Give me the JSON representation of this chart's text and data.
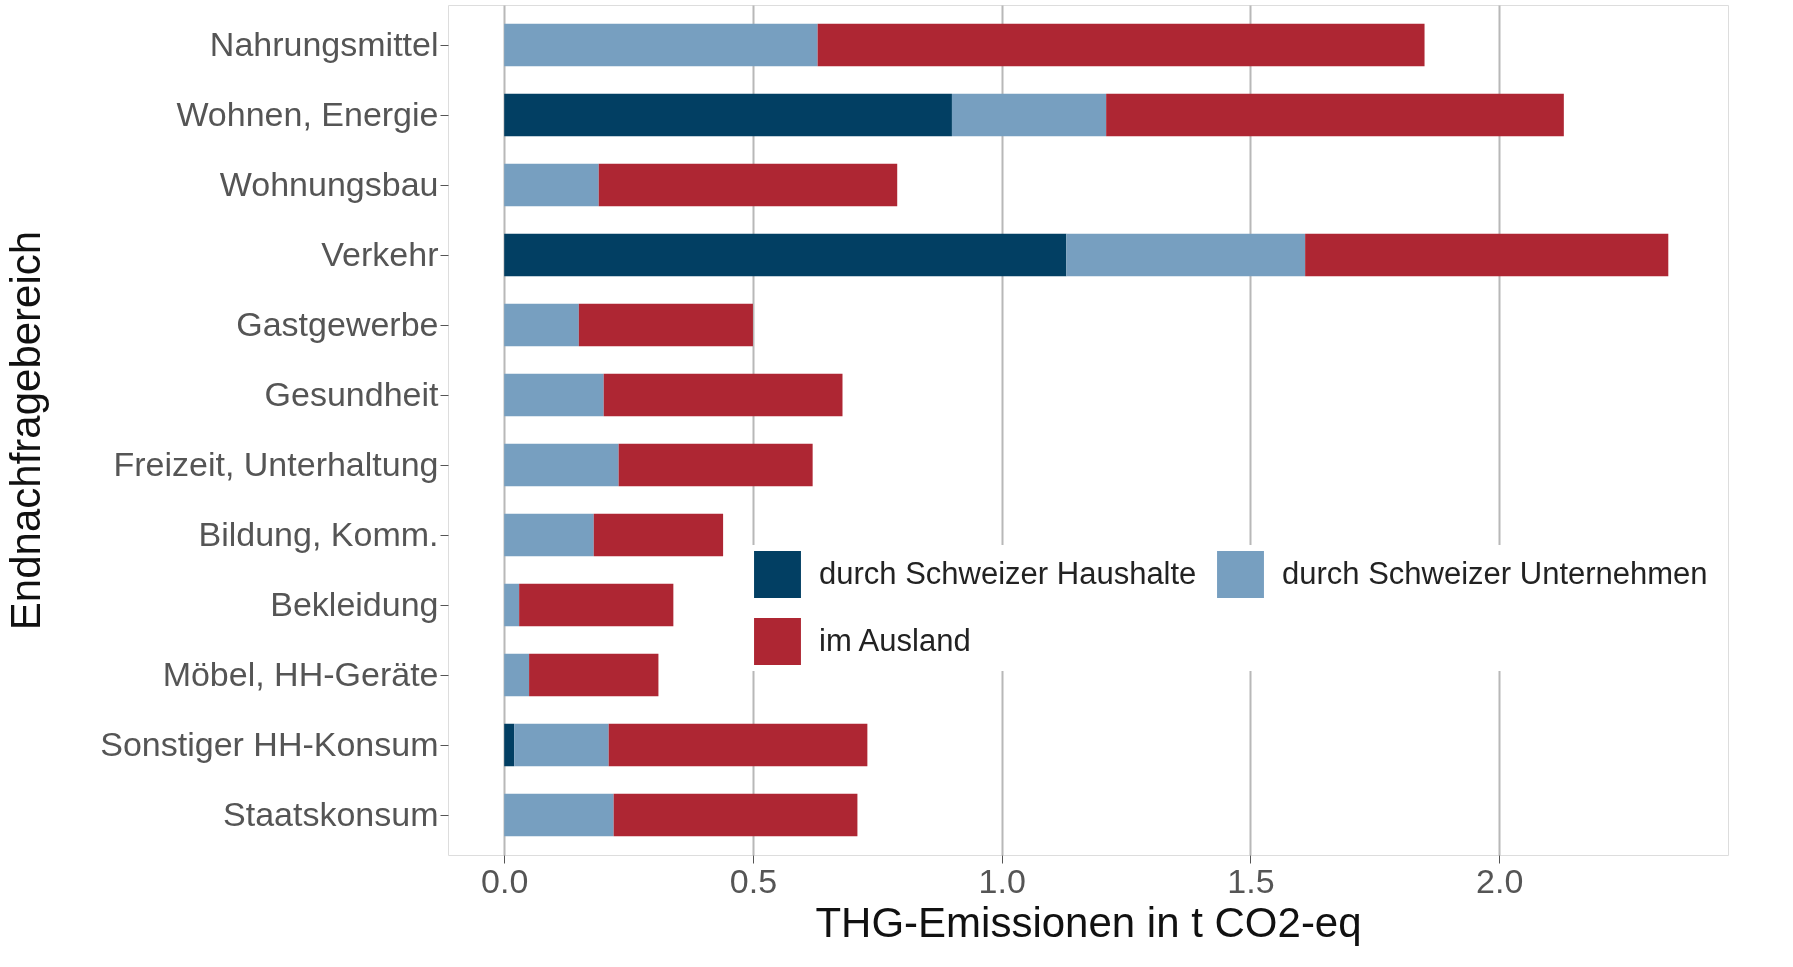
{
  "chart_data": {
    "type": "bar",
    "orientation": "horizontal",
    "stacked": true,
    "xlabel": "THG-Emissionen in t CO2-eq",
    "ylabel": "Endnachfragebereich",
    "categories": [
      "Nahrungsmittel",
      "Wohnen, Energie",
      "Wohnungsbau",
      "Verkehr",
      "Gastgewerbe",
      "Gesundheit",
      "Freizeit, Unterhaltung",
      "Bildung, Komm.",
      "Bekleidung",
      "Möbel, HH-Geräte",
      "Sonstiger HH-Konsum",
      "Staatskonsum"
    ],
    "series": [
      {
        "name": "durch Schweizer Haushalte",
        "color": "#023f63",
        "values": [
          0,
          0.9,
          0,
          1.13,
          0,
          0,
          0,
          0,
          0,
          0,
          0.02,
          0
        ]
      },
      {
        "name": "durch Schweizer Unternehmen",
        "color": "#779fc0",
        "values": [
          0.63,
          0.31,
          0.19,
          0.48,
          0.15,
          0.2,
          0.23,
          0.18,
          0.03,
          0.05,
          0.19,
          0.22
        ]
      },
      {
        "name": "im Ausland",
        "color": "#ae2633",
        "values": [
          1.22,
          0.92,
          0.6,
          0.73,
          0.35,
          0.48,
          0.39,
          0.26,
          0.31,
          0.26,
          0.52,
          0.49
        ]
      }
    ],
    "xlim": [
      -0.113,
      2.46
    ],
    "xticks": [
      {
        "value": 0,
        "label": "0.0"
      },
      {
        "value": 0.5,
        "label": "0.5"
      },
      {
        "value": 1,
        "label": "1.0"
      },
      {
        "value": 1.5,
        "label": "1.5"
      },
      {
        "value": 2,
        "label": "2.0"
      }
    ],
    "grid": "x",
    "legend": "bottom right"
  }
}
